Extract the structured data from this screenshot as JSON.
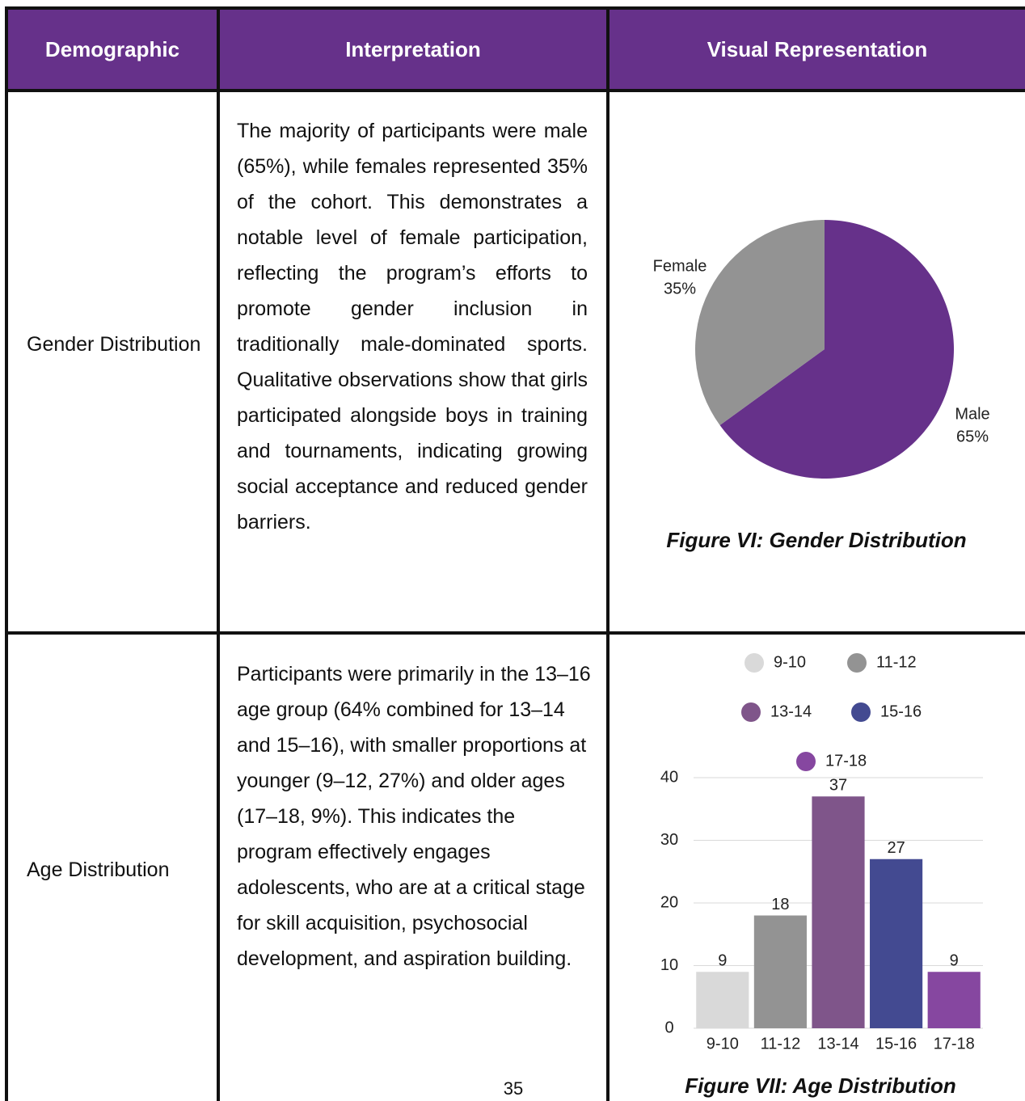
{
  "table": {
    "headers": [
      "Demographic",
      "Interpretation",
      "Visual Representation"
    ],
    "rows": [
      {
        "demographic": "Gender Distribution",
        "interpretation": "The majority of participants were male (65%), while females represented 35% of the cohort. This demonstrates a notable level of female participation, reflecting the program’s efforts to promote gender inclusion in traditionally male-dominated sports. Qualitative observations show that girls participated alongside boys in training and tournaments, indicating growing social acceptance and reduced gender barriers."
      },
      {
        "demographic": "Age Distribution",
        "interpretation": "Participants were primarily in the 13–16 age group (64% combined for 13–14 and 15–16), with smaller proportions at younger (9–12, 27%) and older ages (17–18, 9%). This indicates the program effectively engages adolescents, who are at a critical stage for skill acquisition, psychosocial development, and aspiration building."
      }
    ]
  },
  "chart_data": [
    {
      "type": "pie",
      "title": "Figure VI: Gender Distribution",
      "categories": [
        "Male",
        "Female"
      ],
      "values": [
        65,
        35
      ],
      "value_labels": [
        "65%",
        "35%"
      ],
      "colors": [
        "#66318a",
        "#939393"
      ]
    },
    {
      "type": "bar",
      "title": "Figure VII: Age Distribution",
      "categories": [
        "9-10",
        "11-12",
        "13-14",
        "15-16",
        "17-18"
      ],
      "values": [
        9,
        18,
        37,
        27,
        9
      ],
      "colors": [
        "#d9d9d9",
        "#939393",
        "#7f558a",
        "#434a91",
        "#8647a0"
      ],
      "ylim": [
        0,
        40
      ],
      "yticks": [
        0,
        10,
        20,
        30,
        40
      ],
      "grid": true,
      "legend": "top"
    }
  ],
  "page_number": "35"
}
